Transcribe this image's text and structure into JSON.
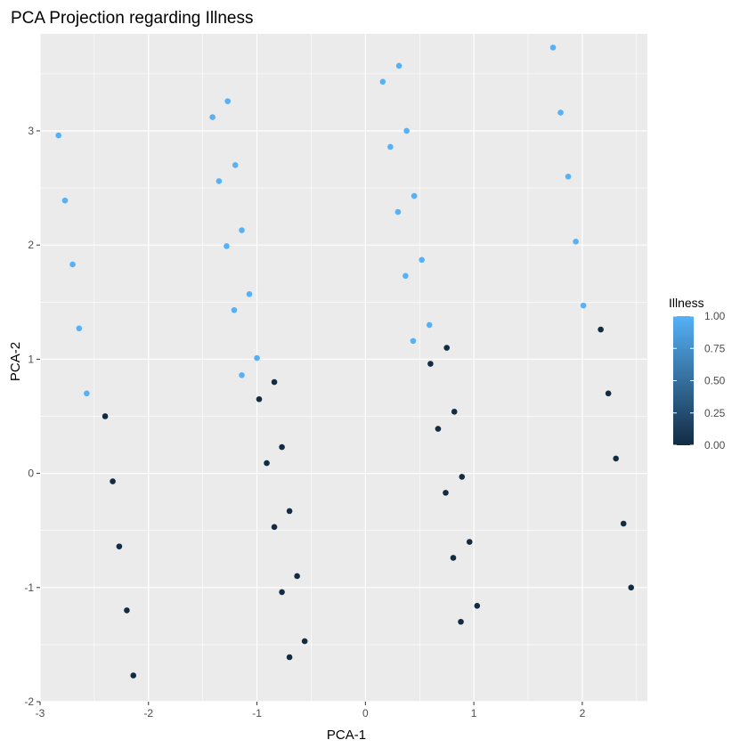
{
  "chart_data": {
    "type": "scatter",
    "title": "PCA Projection regarding Illness",
    "xlabel": "PCA-1",
    "ylabel": "PCA-2",
    "xlim": [
      -3.0,
      2.6
    ],
    "ylim": [
      -2.0,
      3.85
    ],
    "xticks": [
      -3,
      -2,
      -1,
      0,
      1,
      2
    ],
    "yticks": [
      -2,
      -1,
      0,
      1,
      2,
      3
    ],
    "xtick_labels": [
      "-3",
      "-2",
      "-1",
      "0",
      "1",
      "2"
    ],
    "ytick_labels": [
      "-2",
      "-1",
      "0",
      "1",
      "2",
      "3"
    ],
    "grid": true,
    "legend": {
      "title": "Illness",
      "placement": "right",
      "type": "colorbar",
      "range": [
        0,
        1
      ],
      "ticks": [
        0,
        0.25,
        0.5,
        0.75,
        1
      ],
      "tick_labels": [
        "0.00",
        "0.25",
        "0.50",
        "0.75",
        "1.00"
      ],
      "low_color": "#132B43",
      "high_color": "#56B1F7"
    },
    "panel_background": "#EBEBEB",
    "gridline_color": "#FFFFFF",
    "points": [
      {
        "x": -2.83,
        "y": 2.96,
        "illness": 1
      },
      {
        "x": -2.77,
        "y": 2.39,
        "illness": 1
      },
      {
        "x": -2.7,
        "y": 1.83,
        "illness": 1
      },
      {
        "x": -2.64,
        "y": 1.27,
        "illness": 1
      },
      {
        "x": -2.57,
        "y": 0.7,
        "illness": 1
      },
      {
        "x": -2.4,
        "y": 0.5,
        "illness": 0
      },
      {
        "x": -2.33,
        "y": -0.07,
        "illness": 0
      },
      {
        "x": -2.27,
        "y": -0.64,
        "illness": 0
      },
      {
        "x": -2.2,
        "y": -1.2,
        "illness": 0
      },
      {
        "x": -2.14,
        "y": -1.77,
        "illness": 0
      },
      {
        "x": -1.41,
        "y": 3.12,
        "illness": 1
      },
      {
        "x": -1.27,
        "y": 3.26,
        "illness": 1
      },
      {
        "x": -1.2,
        "y": 2.7,
        "illness": 1
      },
      {
        "x": -1.35,
        "y": 2.56,
        "illness": 1
      },
      {
        "x": -1.14,
        "y": 2.13,
        "illness": 1
      },
      {
        "x": -1.28,
        "y": 1.99,
        "illness": 1
      },
      {
        "x": -1.07,
        "y": 1.57,
        "illness": 1
      },
      {
        "x": -1.21,
        "y": 1.43,
        "illness": 1
      },
      {
        "x": -1.0,
        "y": 1.01,
        "illness": 1
      },
      {
        "x": -1.14,
        "y": 0.86,
        "illness": 1
      },
      {
        "x": -0.84,
        "y": 0.8,
        "illness": 0
      },
      {
        "x": -0.98,
        "y": 0.65,
        "illness": 0
      },
      {
        "x": -0.77,
        "y": 0.23,
        "illness": 0
      },
      {
        "x": -0.91,
        "y": 0.09,
        "illness": 0
      },
      {
        "x": -0.7,
        "y": -0.33,
        "illness": 0
      },
      {
        "x": -0.84,
        "y": -0.47,
        "illness": 0
      },
      {
        "x": -0.63,
        "y": -0.9,
        "illness": 0
      },
      {
        "x": -0.77,
        "y": -1.04,
        "illness": 0
      },
      {
        "x": -0.56,
        "y": -1.47,
        "illness": 0
      },
      {
        "x": -0.7,
        "y": -1.61,
        "illness": 0
      },
      {
        "x": 0.31,
        "y": 3.57,
        "illness": 1
      },
      {
        "x": 0.16,
        "y": 3.43,
        "illness": 1
      },
      {
        "x": 0.38,
        "y": 3.0,
        "illness": 1
      },
      {
        "x": 0.23,
        "y": 2.86,
        "illness": 1
      },
      {
        "x": 0.45,
        "y": 2.43,
        "illness": 1
      },
      {
        "x": 0.3,
        "y": 2.29,
        "illness": 1
      },
      {
        "x": 0.52,
        "y": 1.87,
        "illness": 1
      },
      {
        "x": 0.37,
        "y": 1.73,
        "illness": 1
      },
      {
        "x": 0.59,
        "y": 1.3,
        "illness": 1
      },
      {
        "x": 0.44,
        "y": 1.16,
        "illness": 1
      },
      {
        "x": 0.75,
        "y": 1.1,
        "illness": 0
      },
      {
        "x": 0.6,
        "y": 0.96,
        "illness": 0
      },
      {
        "x": 0.82,
        "y": 0.54,
        "illness": 0
      },
      {
        "x": 0.67,
        "y": 0.39,
        "illness": 0
      },
      {
        "x": 0.89,
        "y": -0.03,
        "illness": 0
      },
      {
        "x": 0.74,
        "y": -0.17,
        "illness": 0
      },
      {
        "x": 0.96,
        "y": -0.6,
        "illness": 0
      },
      {
        "x": 0.81,
        "y": -0.74,
        "illness": 0
      },
      {
        "x": 1.03,
        "y": -1.16,
        "illness": 0
      },
      {
        "x": 0.88,
        "y": -1.3,
        "illness": 0
      },
      {
        "x": 1.73,
        "y": 3.73,
        "illness": 1
      },
      {
        "x": 1.8,
        "y": 3.16,
        "illness": 1
      },
      {
        "x": 1.87,
        "y": 2.6,
        "illness": 1
      },
      {
        "x": 1.94,
        "y": 2.03,
        "illness": 1
      },
      {
        "x": 2.01,
        "y": 1.47,
        "illness": 1
      },
      {
        "x": 2.17,
        "y": 1.26,
        "illness": 0
      },
      {
        "x": 2.24,
        "y": 0.7,
        "illness": 0
      },
      {
        "x": 2.31,
        "y": 0.13,
        "illness": 0
      },
      {
        "x": 2.38,
        "y": -0.44,
        "illness": 0
      },
      {
        "x": 2.45,
        "y": -1.0,
        "illness": 0
      }
    ]
  }
}
